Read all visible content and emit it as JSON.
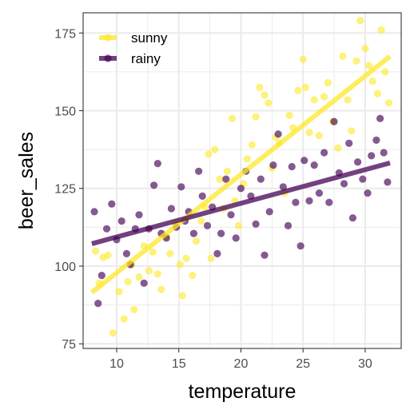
{
  "chart_data": {
    "type": "scatter",
    "xlabel": "temperature",
    "ylabel": "beer_sales",
    "xlim": [
      7.3,
      32.9
    ],
    "ylim": [
      73.5,
      181.5
    ],
    "xticks": [
      10,
      15,
      20,
      25,
      30
    ],
    "yticks": [
      75,
      100,
      125,
      150,
      175
    ],
    "x_minor_ticks": [
      12.5,
      17.5,
      22.5,
      27.5
    ],
    "y_minor_ticks": [
      87.5,
      112.5,
      137.5,
      162.5
    ],
    "grid": true,
    "legend_position": "top-left",
    "series": [
      {
        "name": "sunny",
        "color": "#FDE725",
        "point_alpha": 0.6,
        "trend_line": {
          "x": [
            8.0,
            32.0
          ],
          "y": [
            91.5,
            167.5
          ]
        },
        "points": [
          [
            8.3,
            104.8
          ],
          [
            8.6,
            94.5
          ],
          [
            8.9,
            102.8
          ],
          [
            9.3,
            103.5
          ],
          [
            9.7,
            78.5
          ],
          [
            10.2,
            91.8
          ],
          [
            10.6,
            83.0
          ],
          [
            10.9,
            95.0
          ],
          [
            11.2,
            100.5
          ],
          [
            11.4,
            86.0
          ],
          [
            11.8,
            96.5
          ],
          [
            12.2,
            106.5
          ],
          [
            12.6,
            98.5
          ],
          [
            12.9,
            104.5
          ],
          [
            13.3,
            97.5
          ],
          [
            13.6,
            92.5
          ],
          [
            14.0,
            109.5
          ],
          [
            14.3,
            104.0
          ],
          [
            14.7,
            114.0
          ],
          [
            15.1,
            100.5
          ],
          [
            15.3,
            90.5
          ],
          [
            15.6,
            102.5
          ],
          [
            16.1,
            97.0
          ],
          [
            16.4,
            108.0
          ],
          [
            16.8,
            114.5
          ],
          [
            17.1,
            119.0
          ],
          [
            17.4,
            136.0
          ],
          [
            17.6,
            102.5
          ],
          [
            17.9,
            137.5
          ],
          [
            18.3,
            128.0
          ],
          [
            18.6,
            118.5
          ],
          [
            18.9,
            130.5
          ],
          [
            19.3,
            147.5
          ],
          [
            19.5,
            121.0
          ],
          [
            19.8,
            113.0
          ],
          [
            20.2,
            126.5
          ],
          [
            20.5,
            134.5
          ],
          [
            20.9,
            139.0
          ],
          [
            21.2,
            148.0
          ],
          [
            21.5,
            157.5
          ],
          [
            21.9,
            155.0
          ],
          [
            22.2,
            152.5
          ],
          [
            22.5,
            131.5
          ],
          [
            22.8,
            141.5
          ],
          [
            23.1,
            139.5
          ],
          [
            23.5,
            123.5
          ],
          [
            23.9,
            148.5
          ],
          [
            24.2,
            144.5
          ],
          [
            24.6,
            156.5
          ],
          [
            25.0,
            166.5
          ],
          [
            25.2,
            157.5
          ],
          [
            25.5,
            143.0
          ],
          [
            25.9,
            153.5
          ],
          [
            26.3,
            142.0
          ],
          [
            26.7,
            154.5
          ],
          [
            27.0,
            159.0
          ],
          [
            27.4,
            146.5
          ],
          [
            27.8,
            138.0
          ],
          [
            28.2,
            167.5
          ],
          [
            28.6,
            153.5
          ],
          [
            28.9,
            143.5
          ],
          [
            29.3,
            166.0
          ],
          [
            29.6,
            179.0
          ],
          [
            30.0,
            170.0
          ],
          [
            30.3,
            164.5
          ],
          [
            30.6,
            159.5
          ],
          [
            31.0,
            155.5
          ],
          [
            31.3,
            176.0
          ],
          [
            31.6,
            162.5
          ],
          [
            31.9,
            152.5
          ]
        ]
      },
      {
        "name": "rainy",
        "color": "#440154",
        "point_alpha": 0.65,
        "trend_line": {
          "x": [
            8.0,
            32.0
          ],
          "y": [
            107.2,
            133.2
          ]
        },
        "points": [
          [
            8.2,
            117.5
          ],
          [
            8.5,
            88.0
          ],
          [
            8.8,
            97.0
          ],
          [
            9.2,
            112.0
          ],
          [
            9.6,
            120.0
          ],
          [
            10.0,
            108.5
          ],
          [
            10.4,
            114.5
          ],
          [
            10.8,
            104.0
          ],
          [
            11.1,
            100.5
          ],
          [
            11.5,
            112.0
          ],
          [
            11.8,
            116.5
          ],
          [
            12.2,
            94.5
          ],
          [
            12.6,
            112.0
          ],
          [
            13.0,
            126.0
          ],
          [
            13.3,
            133.0
          ],
          [
            13.6,
            110.5
          ],
          [
            14.0,
            109.0
          ],
          [
            14.4,
            118.5
          ],
          [
            14.8,
            112.5
          ],
          [
            15.2,
            125.5
          ],
          [
            15.5,
            114.5
          ],
          [
            15.8,
            117.5
          ],
          [
            16.2,
            110.5
          ],
          [
            16.6,
            130.5
          ],
          [
            16.9,
            122.5
          ],
          [
            17.3,
            113.0
          ],
          [
            17.7,
            119.0
          ],
          [
            18.1,
            104.0
          ],
          [
            18.4,
            110.5
          ],
          [
            18.8,
            128.0
          ],
          [
            19.2,
            116.5
          ],
          [
            19.6,
            109.0
          ],
          [
            20.0,
            125.0
          ],
          [
            20.4,
            130.5
          ],
          [
            20.8,
            122.5
          ],
          [
            21.2,
            113.5
          ],
          [
            21.6,
            128.0
          ],
          [
            21.9,
            103.5
          ],
          [
            22.3,
            117.5
          ],
          [
            22.6,
            132.5
          ],
          [
            23.0,
            142.5
          ],
          [
            23.4,
            125.5
          ],
          [
            23.8,
            113.0
          ],
          [
            24.1,
            132.0
          ],
          [
            24.4,
            120.5
          ],
          [
            24.8,
            106.5
          ],
          [
            25.1,
            134.0
          ],
          [
            25.5,
            121.0
          ],
          [
            25.9,
            132.5
          ],
          [
            26.3,
            123.5
          ],
          [
            26.7,
            136.5
          ],
          [
            27.1,
            120.5
          ],
          [
            27.5,
            146.5
          ],
          [
            27.9,
            130.0
          ],
          [
            28.3,
            126.5
          ],
          [
            28.7,
            139.5
          ],
          [
            29.0,
            115.5
          ],
          [
            29.4,
            133.5
          ],
          [
            29.8,
            128.0
          ],
          [
            30.2,
            123.5
          ],
          [
            30.5,
            135.5
          ],
          [
            30.9,
            140.5
          ],
          [
            31.2,
            147.5
          ],
          [
            31.5,
            136.5
          ],
          [
            31.8,
            127.0
          ]
        ]
      }
    ]
  }
}
